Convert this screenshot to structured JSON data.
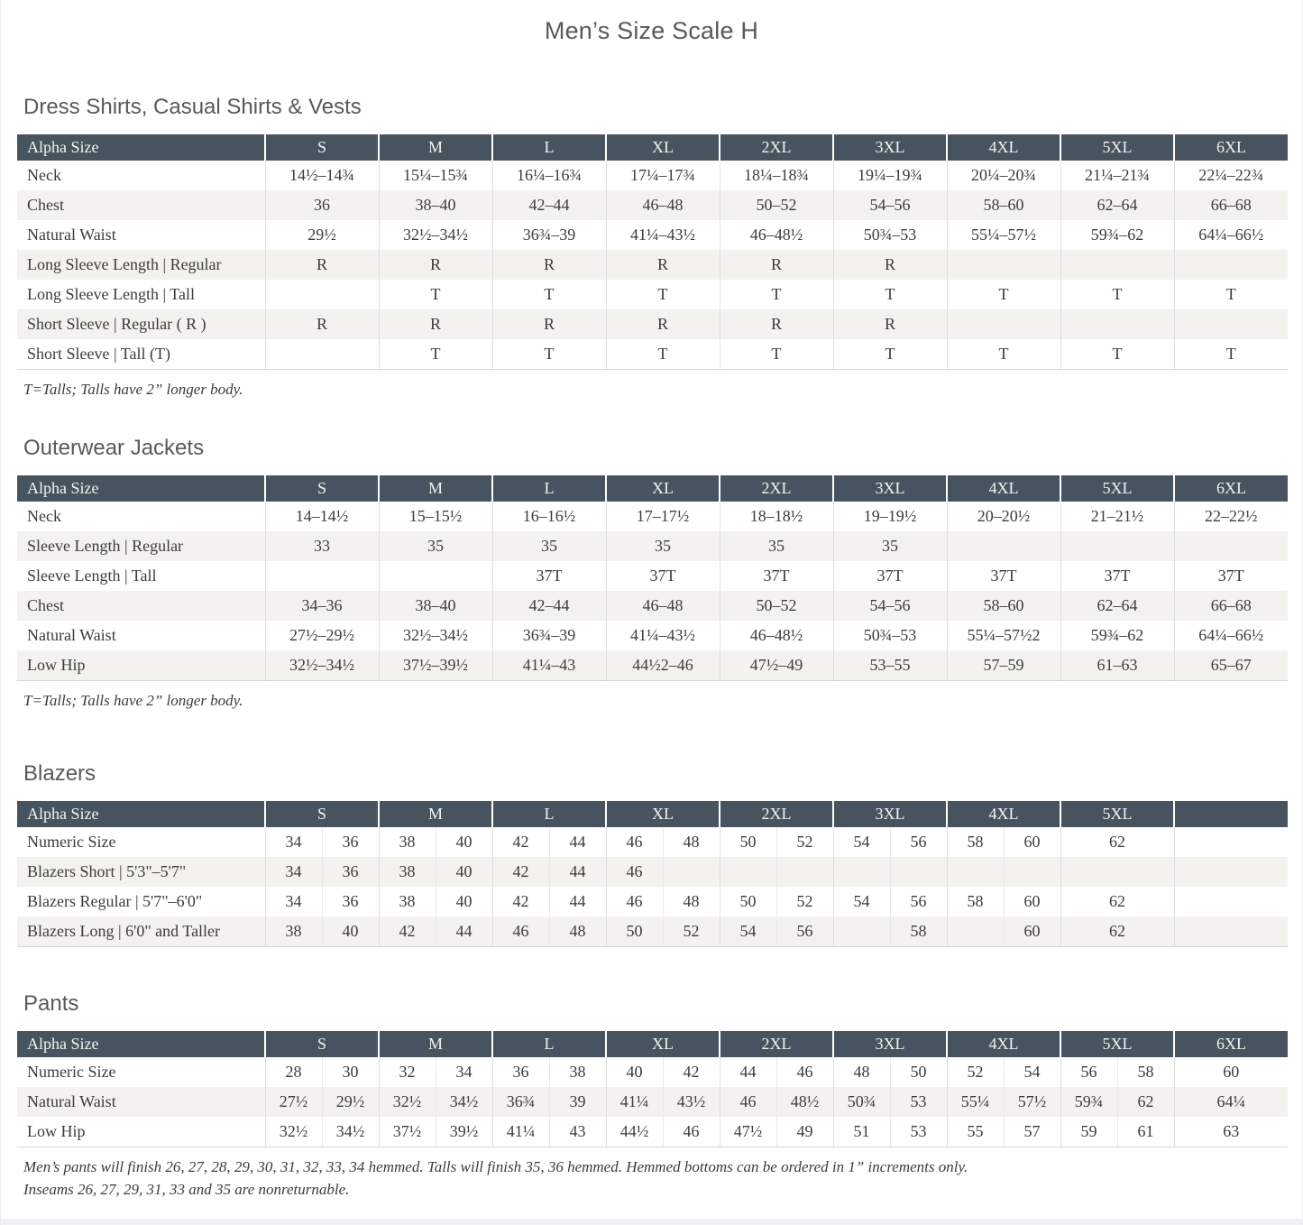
{
  "page": {
    "title": "Men’s Size Scale H"
  },
  "colors": {
    "header_bg": "#47545f",
    "header_text": "#f3f3f0",
    "row_alt": "#f3f2ef",
    "body_text": "#3c3c3c",
    "heading_text": "#58595b"
  },
  "sections": [
    {
      "id": "dress-shirts",
      "heading": "Dress Shirts, Casual Shirts & Vests",
      "type": "simple",
      "columns": [
        "Alpha Size",
        "S",
        "M",
        "L",
        "XL",
        "2XL",
        "3XL",
        "4XL",
        "5XL",
        "6XL"
      ],
      "rows": [
        {
          "label": "Neck",
          "values": [
            "14½–14¾",
            "15¼–15¾",
            "16¼–16¾",
            "17¼–17¾",
            "18¼–18¾",
            "19¼–19¾",
            "20¼–20¾",
            "21¼–21¾",
            "22¼–22¾"
          ]
        },
        {
          "label": "Chest",
          "values": [
            "36",
            "38–40",
            "42–44",
            "46–48",
            "50–52",
            "54–56",
            "58–60",
            "62–64",
            "66–68"
          ]
        },
        {
          "label": "Natural Waist",
          "values": [
            "29½",
            "32½–34½",
            "36¾–39",
            "41¼–43½",
            "46–48½",
            "50¾–53",
            "55¼–57½",
            "59¾–62",
            "64¼–66½"
          ]
        },
        {
          "label": "Long Sleeve Length | Regular",
          "values": [
            "R",
            "R",
            "R",
            "R",
            "R",
            "R",
            "",
            "",
            ""
          ]
        },
        {
          "label": "Long Sleeve Length | Tall",
          "values": [
            "",
            "T",
            "T",
            "T",
            "T",
            "T",
            "T",
            "T",
            "T"
          ]
        },
        {
          "label": "Short Sleeve | Regular ( R )",
          "values": [
            "R",
            "R",
            "R",
            "R",
            "R",
            "R",
            "",
            "",
            ""
          ]
        },
        {
          "label": "Short Sleeve | Tall (T)",
          "values": [
            "",
            "T",
            "T",
            "T",
            "T",
            "T",
            "T",
            "T",
            "T"
          ]
        }
      ],
      "footnotes": [
        "T=Talls; Talls have 2” longer body."
      ]
    },
    {
      "id": "outerwear-jackets",
      "heading": "Outerwear Jackets",
      "type": "simple",
      "columns": [
        "Alpha Size",
        "S",
        "M",
        "L",
        "XL",
        "2XL",
        "3XL",
        "4XL",
        "5XL",
        "6XL"
      ],
      "rows": [
        {
          "label": "Neck",
          "values": [
            "14–14½",
            "15–15½",
            "16–16½",
            "17–17½",
            "18–18½",
            "19–19½",
            "20–20½",
            "21–21½",
            "22–22½"
          ]
        },
        {
          "label": "Sleeve Length | Regular",
          "values": [
            "33",
            "35",
            "35",
            "35",
            "35",
            "35",
            "",
            "",
            ""
          ]
        },
        {
          "label": "Sleeve Length | Tall",
          "values": [
            "",
            "",
            "37T",
            "37T",
            "37T",
            "37T",
            "37T",
            "37T",
            "37T"
          ]
        },
        {
          "label": "Chest",
          "values": [
            "34–36",
            "38–40",
            "42–44",
            "46–48",
            "50–52",
            "54–56",
            "58–60",
            "62–64",
            "66–68"
          ]
        },
        {
          "label": "Natural Waist",
          "values": [
            "27½–29½",
            "32½–34½",
            "36¾–39",
            "41¼–43½",
            "46–48½",
            "50¾–53",
            "55¼–57½2",
            "59¾–62",
            "64¼–66½"
          ]
        },
        {
          "label": "Low Hip",
          "values": [
            "32½–34½",
            "37½–39½",
            "41¼–43",
            "44½2–46",
            "47½–49",
            "53–55",
            "57–59",
            "61–63",
            "65–67"
          ]
        }
      ],
      "footnotes": [
        "T=Talls; Talls have 2” longer body."
      ]
    },
    {
      "id": "blazers",
      "heading": "Blazers",
      "type": "paired",
      "columns": [
        "Alpha Size",
        "S",
        "M",
        "L",
        "XL",
        "2XL",
        "3XL",
        "4XL",
        "5XL",
        ""
      ],
      "rows": [
        {
          "label": "Numeric Size",
          "pairs": [
            [
              "34",
              "36"
            ],
            [
              "38",
              "40"
            ],
            [
              "42",
              "44"
            ],
            [
              "46",
              "48"
            ],
            [
              "50",
              "52"
            ],
            [
              "54",
              "56"
            ],
            [
              "58",
              "60"
            ],
            [
              "62"
            ],
            []
          ]
        },
        {
          "label": "Blazers Short | 5'3\"–5'7\"",
          "pairs": [
            [
              "34",
              "36"
            ],
            [
              "38",
              "40"
            ],
            [
              "42",
              "44"
            ],
            [
              "46",
              ""
            ],
            [
              "",
              ""
            ],
            [
              "",
              ""
            ],
            [
              "",
              ""
            ],
            [],
            []
          ]
        },
        {
          "label": "Blazers Regular | 5'7\"–6'0\"",
          "pairs": [
            [
              "34",
              "36"
            ],
            [
              "38",
              "40"
            ],
            [
              "42",
              "44"
            ],
            [
              "46",
              "48"
            ],
            [
              "50",
              "52"
            ],
            [
              "54",
              "56"
            ],
            [
              "58",
              "60"
            ],
            [
              "62"
            ],
            []
          ]
        },
        {
          "label": "Blazers Long | 6'0\" and Taller",
          "pairs": [
            [
              "38",
              "40"
            ],
            [
              "42",
              "44"
            ],
            [
              "46",
              "48"
            ],
            [
              "50",
              "52"
            ],
            [
              "54",
              "56"
            ],
            [
              "",
              "58"
            ],
            [
              "",
              "60"
            ],
            [
              "62"
            ],
            []
          ]
        }
      ],
      "footnotes": []
    },
    {
      "id": "pants",
      "heading": "Pants",
      "type": "paired",
      "columns": [
        "Alpha Size",
        "S",
        "M",
        "L",
        "XL",
        "2XL",
        "3XL",
        "4XL",
        "5XL",
        "6XL"
      ],
      "rows": [
        {
          "label": "Numeric Size",
          "pairs": [
            [
              "28",
              "30"
            ],
            [
              "32",
              "34"
            ],
            [
              "36",
              "38"
            ],
            [
              "40",
              "42"
            ],
            [
              "44",
              "46"
            ],
            [
              "48",
              "50"
            ],
            [
              "52",
              "54"
            ],
            [
              "56",
              "58"
            ],
            [
              "60"
            ]
          ]
        },
        {
          "label": "Natural Waist",
          "pairs": [
            [
              "27½",
              "29½"
            ],
            [
              "32½",
              "34½"
            ],
            [
              "36¾",
              "39"
            ],
            [
              "41¼",
              "43½"
            ],
            [
              "46",
              "48½"
            ],
            [
              "50¾",
              "53"
            ],
            [
              "55¼",
              "57½"
            ],
            [
              "59¾",
              "62"
            ],
            [
              "64¼"
            ]
          ]
        },
        {
          "label": "Low Hip",
          "pairs": [
            [
              "32½",
              "34½"
            ],
            [
              "37½",
              "39½"
            ],
            [
              "41¼",
              "43"
            ],
            [
              "44½",
              "46"
            ],
            [
              "47½",
              "49"
            ],
            [
              "51",
              "53"
            ],
            [
              "55",
              "57"
            ],
            [
              "59",
              "61"
            ],
            [
              "63"
            ]
          ]
        }
      ],
      "footnotes": [
        "Men’s pants will finish 26, 27, 28, 29, 30, 31, 32, 33, 34 hemmed. Talls will finish 35, 36 hemmed. Hemmed bottoms can be ordered in 1” increments only.",
        "Inseams 26, 27, 29, 31, 33 and 35 are nonreturnable."
      ]
    }
  ]
}
